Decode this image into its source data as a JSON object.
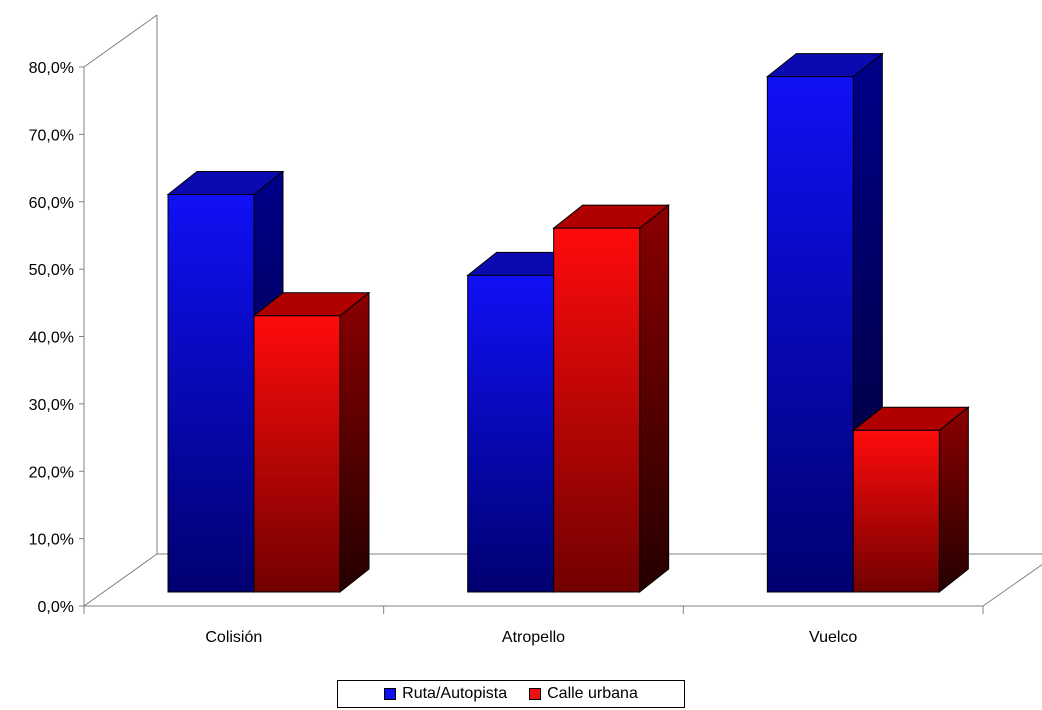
{
  "chart_data": {
    "type": "bar",
    "style": "3d-clustered-column",
    "categories": [
      "Colisión",
      "Atropello",
      "Vuelco"
    ],
    "series": [
      {
        "name": "Ruta/Autopista",
        "values": [
          59.0,
          47.0,
          76.5
        ],
        "color": "#1010ee"
      },
      {
        "name": "Calle urbana",
        "values": [
          41.0,
          54.0,
          24.0
        ],
        "color": "#ee1010"
      }
    ],
    "ylim": [
      0,
      80
    ],
    "yticks": [
      "0,0%",
      "10,0%",
      "20,0%",
      "30,0%",
      "40,0%",
      "50,0%",
      "60,0%",
      "70,0%",
      "80,0%"
    ],
    "xlabel": "",
    "ylabel": "",
    "title": "",
    "grid": false,
    "legend_position": "bottom"
  }
}
